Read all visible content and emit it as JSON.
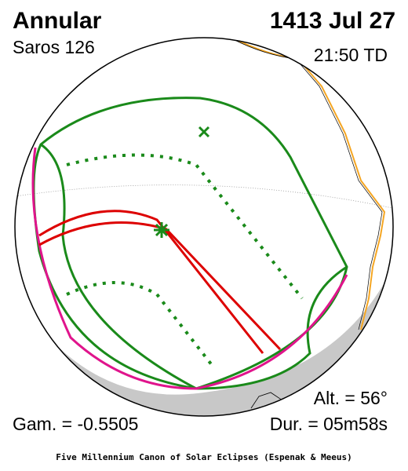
{
  "header": {
    "title": "Annular",
    "saros": "Saros 126",
    "date": "1413 Jul 27",
    "time": "21:50 TD"
  },
  "footer": {
    "altitude": "Alt. = 56°",
    "gamma": "Gam. = -0.5505",
    "duration": "Dur. = 05m58s",
    "credit": "Five Millennium Canon of Solar Eclipses (Espenak & Meeus)"
  }
}
